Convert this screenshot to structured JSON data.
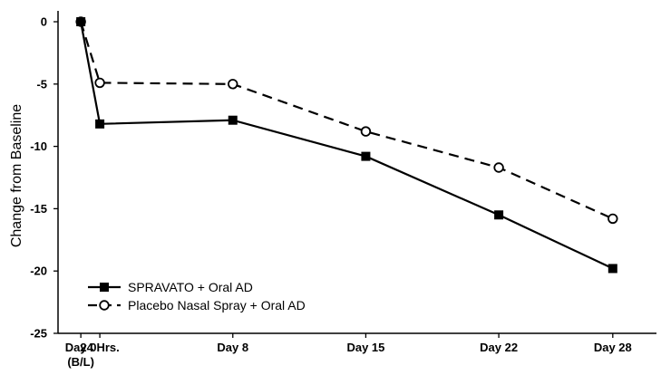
{
  "chart_data": {
    "type": "line",
    "title": "",
    "xlabel": "",
    "ylabel": "Change from Baseline",
    "ylim": [
      -25,
      0
    ],
    "yticks": [
      0,
      -5,
      -10,
      -15,
      -20,
      -25
    ],
    "x_unit": "days",
    "xticks": [
      {
        "value": 0,
        "label": "Day 0",
        "sublabel": "(B/L)"
      },
      {
        "value": 1,
        "label": "24 Hrs.",
        "sublabel": ""
      },
      {
        "value": 8,
        "label": "Day 8",
        "sublabel": ""
      },
      {
        "value": 15,
        "label": "Day 15",
        "sublabel": ""
      },
      {
        "value": 22,
        "label": "Day 22",
        "sublabel": ""
      },
      {
        "value": 28,
        "label": "Day 28",
        "sublabel": ""
      }
    ],
    "x": [
      0,
      1,
      8,
      15,
      22,
      28
    ],
    "grid": false,
    "legend_position": "bottom-left",
    "series": [
      {
        "name": "SPRAVATO + Oral AD",
        "values": [
          0,
          -8.2,
          -7.9,
          -10.8,
          -15.5,
          -19.8
        ],
        "color": "#000000",
        "line_style": "solid",
        "marker": "filled-square"
      },
      {
        "name": "Placebo Nasal Spray + Oral AD",
        "values": [
          0,
          -4.9,
          -5.0,
          -8.8,
          -11.7,
          -15.8
        ],
        "color": "#000000",
        "line_style": "dashed",
        "marker": "open-circle"
      }
    ]
  }
}
